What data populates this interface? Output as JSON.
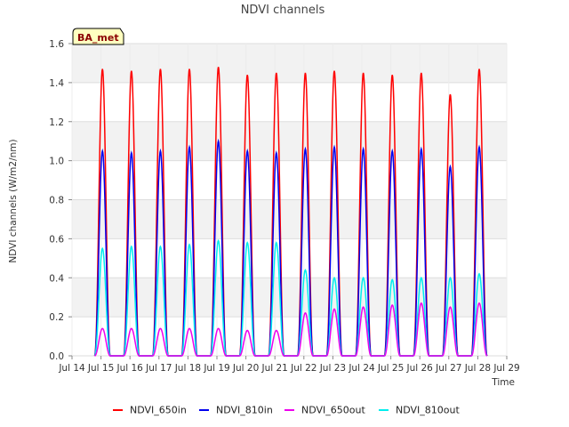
{
  "chart_data": {
    "type": "line",
    "title": "NDVI channels",
    "xlabel": "Time",
    "ylabel": "NDVI channels (W/m2/nm)",
    "ylim": [
      0.0,
      1.6
    ],
    "xlim": [
      "2023-07-14",
      "2023-07-29"
    ],
    "x_tick_labels": [
      "Jul 14",
      "Jul 15",
      "Jul 16",
      "Jul 17",
      "Jul 18",
      "Jul 19",
      "Jul 20",
      "Jul 21",
      "Jul 22",
      "Jul 23",
      "Jul 24",
      "Jul 25",
      "Jul 26",
      "Jul 27",
      "Jul 28",
      "Jul 29"
    ],
    "y_tick_labels": [
      "0.0",
      "0.2",
      "0.4",
      "0.6",
      "0.8",
      "1.0",
      "1.2",
      "1.4",
      "1.6"
    ],
    "grid": true,
    "legend_position": "bottom",
    "badge": "BA_met",
    "series_daily_peak_dates": [
      "2023-07-15",
      "2023-07-16",
      "2023-07-17",
      "2023-07-18",
      "2023-07-19",
      "2023-07-20",
      "2023-07-21",
      "2023-07-22",
      "2023-07-23",
      "2023-07-24",
      "2023-07-25",
      "2023-07-26",
      "2023-07-27",
      "2023-07-28"
    ],
    "series": [
      {
        "name": "NDVI_650in",
        "color": "#ff0000",
        "daily_peaks": [
          1.47,
          1.46,
          1.47,
          1.47,
          1.48,
          1.44,
          1.45,
          1.45,
          1.46,
          1.45,
          1.44,
          1.45,
          1.34,
          1.47
        ]
      },
      {
        "name": "NDVI_810in",
        "color": "#0000ee",
        "daily_peaks": [
          1.05,
          1.04,
          1.05,
          1.07,
          1.1,
          1.05,
          1.04,
          1.06,
          1.07,
          1.06,
          1.05,
          1.06,
          0.97,
          1.07
        ]
      },
      {
        "name": "NDVI_650out",
        "color": "#ee00ee",
        "daily_peaks": [
          0.14,
          0.14,
          0.14,
          0.14,
          0.14,
          0.13,
          0.13,
          0.22,
          0.24,
          0.25,
          0.26,
          0.27,
          0.25,
          0.27
        ]
      },
      {
        "name": "NDVI_810out",
        "color": "#00eeee",
        "daily_peaks": [
          0.55,
          0.56,
          0.56,
          0.57,
          0.59,
          0.58,
          0.58,
          0.44,
          0.4,
          0.4,
          0.39,
          0.4,
          0.4,
          0.42
        ]
      }
    ]
  }
}
